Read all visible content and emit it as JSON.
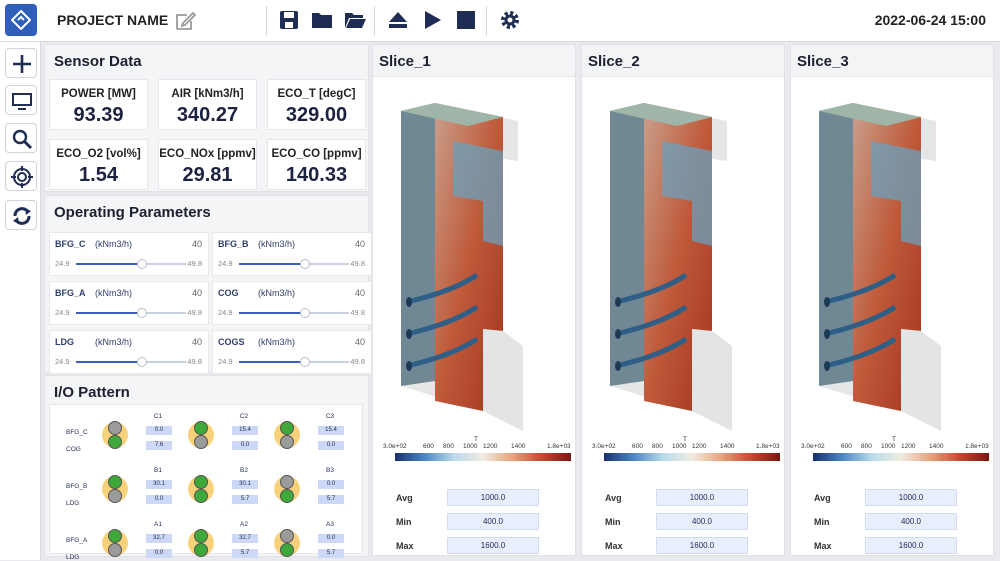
{
  "app": {
    "project_name": "PROJECT NAME",
    "datetime": "2022-06-24 15:00"
  },
  "toolbar": {
    "icons": [
      "save-icon",
      "folder-icon",
      "folder-open-icon",
      "eject-icon",
      "play-icon",
      "stop-icon",
      "gear-icon"
    ]
  },
  "sidebar": {
    "icons": [
      "plus-icon",
      "monitor-icon",
      "search-icon",
      "target-icon",
      "refresh-icon"
    ]
  },
  "sensor": {
    "title": "Sensor Data",
    "cards": [
      {
        "label": "POWER [MW]",
        "value": "93.39"
      },
      {
        "label": "AIR [kNm3/h]",
        "value": "340.27"
      },
      {
        "label": "ECO_T [degC]",
        "value": "329.00"
      },
      {
        "label": "ECO_O2 [vol%]",
        "value": "1.54"
      },
      {
        "label": "ECO_NOx [ppmv]",
        "value": "29.81"
      },
      {
        "label": "ECO_CO [ppmv]",
        "value": "140.33"
      }
    ]
  },
  "params": {
    "title": "Operating Parameters",
    "items": [
      {
        "name": "BFG_C",
        "unit": "(kNm3/h)",
        "value": "40",
        "min": "24.9",
        "max": "49.8",
        "level": 0.6
      },
      {
        "name": "BFG_B",
        "unit": "(kNm3/h)",
        "value": "40",
        "min": "24.9",
        "max": "49.8",
        "level": 0.6
      },
      {
        "name": "BFG_A",
        "unit": "(kNm3/h)",
        "value": "40",
        "min": "24.9",
        "max": "49.8",
        "level": 0.6
      },
      {
        "name": "COG",
        "unit": "(kNm3/h)",
        "value": "40",
        "min": "24.9",
        "max": "49.8",
        "level": 0.6
      },
      {
        "name": "LDG",
        "unit": "(kNm3/h)",
        "value": "40",
        "min": "24.9",
        "max": "49.8",
        "level": 0.6
      },
      {
        "name": "COGS",
        "unit": "(kNm3/h)",
        "value": "40",
        "min": "24.9",
        "max": "49.8",
        "level": 0.6
      }
    ]
  },
  "io": {
    "title": "I/O Pattern",
    "groups": [
      {
        "top_label": "BFG_C",
        "bottom_label": "COG",
        "cols": [
          {
            "name": "C1",
            "top": "0.0",
            "bottom": "7.6"
          },
          {
            "name": "C2",
            "top": "15.4",
            "bottom": "0.0"
          },
          {
            "name": "C3",
            "top": "15.4",
            "bottom": "0.0"
          }
        ]
      },
      {
        "top_label": "BFG_B",
        "bottom_label": "LDG",
        "cols": [
          {
            "name": "B1",
            "top": "30.1",
            "bottom": "0.0"
          },
          {
            "name": "B2",
            "top": "30.1",
            "bottom": "5.7"
          },
          {
            "name": "B3",
            "top": "0.0",
            "bottom": "5.7"
          }
        ]
      },
      {
        "top_label": "BFG_A",
        "bottom_label": "LDG",
        "cols": [
          {
            "name": "A1",
            "top": "32.7",
            "bottom": "0.0"
          },
          {
            "name": "A2",
            "top": "32.7",
            "bottom": "5.7"
          },
          {
            "name": "A3",
            "top": "0.0",
            "bottom": "5.7"
          }
        ]
      }
    ],
    "colors": {
      "on": "#3ea83a",
      "off": "#9b9b9b",
      "ring": "#f8d27a"
    }
  },
  "slices": [
    {
      "title": "Slice_1",
      "avg": "1000.0",
      "min": "400.0",
      "max": "1600.0"
    },
    {
      "title": "Slice_2",
      "avg": "1000.0",
      "min": "400.0",
      "max": "1600.0"
    },
    {
      "title": "Slice_3",
      "avg": "1000.0",
      "min": "400.0",
      "max": "1600.0"
    }
  ],
  "colorbar": {
    "var": "T",
    "ticks": [
      "3.0e+02",
      "600",
      "800",
      "1000",
      "1200",
      "1400",
      "1.8e+03"
    ]
  },
  "stat_labels": {
    "avg": "Avg",
    "min": "Min",
    "max": "Max"
  }
}
